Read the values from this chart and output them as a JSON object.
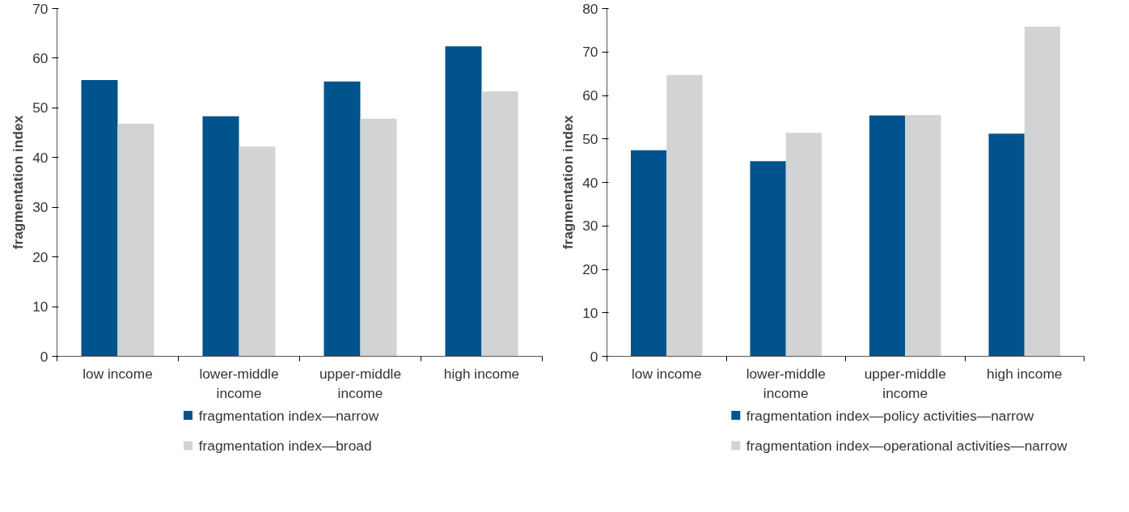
{
  "chart_data": [
    {
      "type": "bar",
      "ylabel": "fragmentation index",
      "categories": [
        "low income",
        "lower-middle income",
        "upper-middle income",
        "high income"
      ],
      "ylim": [
        0,
        70
      ],
      "yticks": [
        0,
        10,
        20,
        30,
        40,
        50,
        60,
        70
      ],
      "grid": false,
      "legend": "bottom",
      "series": [
        {
          "name": "fragmentation index—narrow",
          "color": "#00538c",
          "values": [
            55.6,
            48.3,
            55.3,
            62.4
          ]
        },
        {
          "name": "fragmentation index—broad",
          "color": "#d1d3d4",
          "values": [
            46.8,
            42.2,
            47.8,
            53.3
          ]
        }
      ]
    },
    {
      "type": "bar",
      "ylabel": "fragmentation index",
      "categories": [
        "low income",
        "lower-middle income",
        "upper-middle income",
        "high income"
      ],
      "ylim": [
        0,
        80
      ],
      "yticks": [
        0,
        10,
        20,
        30,
        40,
        50,
        60,
        70,
        80
      ],
      "grid": false,
      "legend": "bottom",
      "series": [
        {
          "name": "fragmentation index—policy activities—narrow",
          "color": "#00538c",
          "values": [
            47.4,
            44.9,
            55.4,
            51.2
          ]
        },
        {
          "name": "fragmentation index—operational activities—narrow",
          "color": "#d1d3d4",
          "values": [
            64.7,
            51.4,
            55.5,
            75.8
          ]
        }
      ]
    }
  ]
}
